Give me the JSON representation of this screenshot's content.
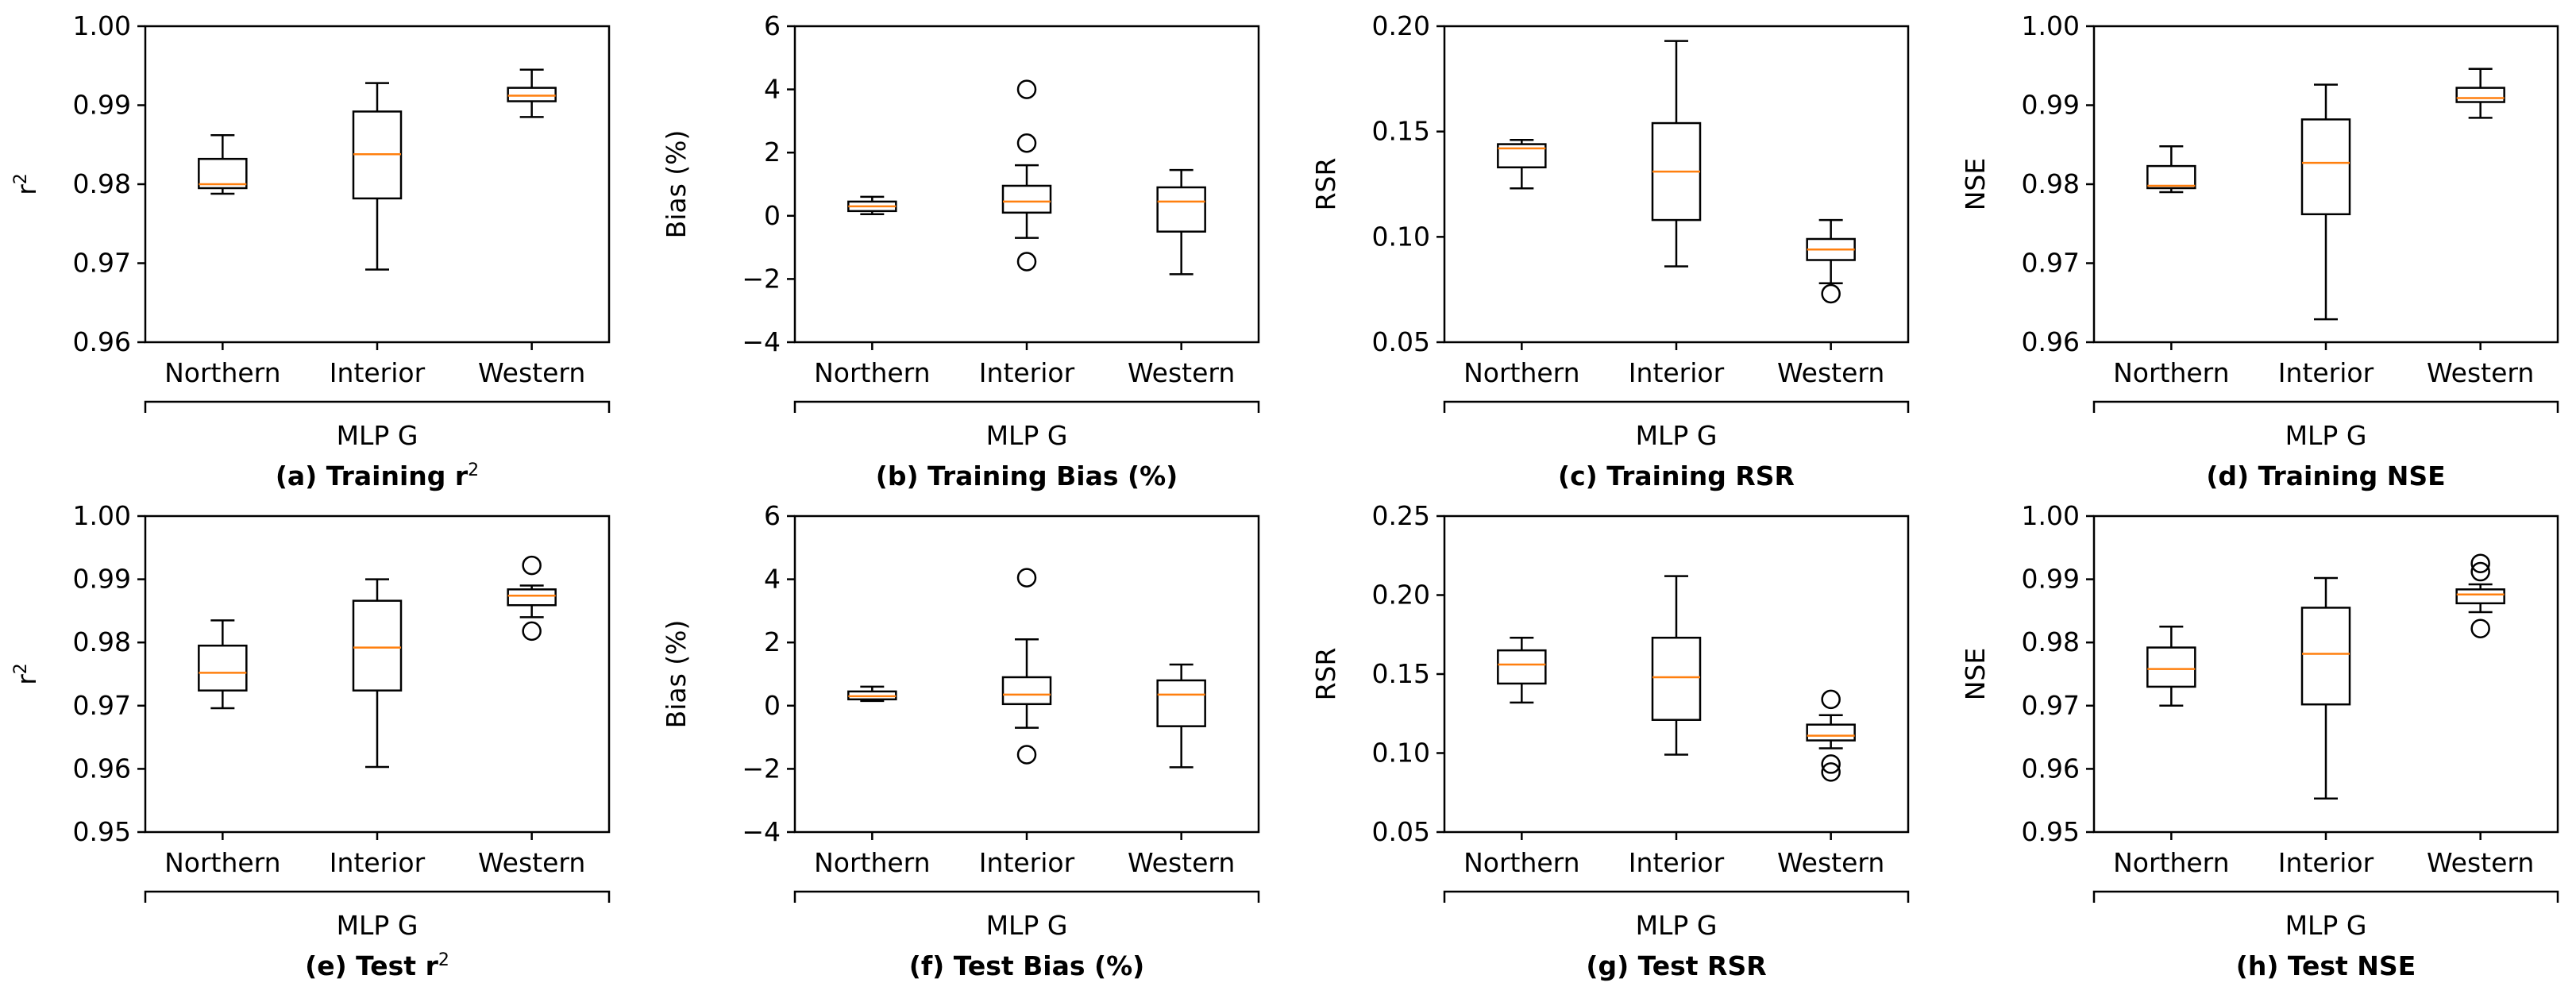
{
  "colors": {
    "median": "#ff7f0e",
    "box": "#000000",
    "background": "#ffffff"
  },
  "chart_data": [
    {
      "type": "box",
      "title": "(a) Training r",
      "title_sup": "2",
      "ylabel": "r",
      "ylabel_sup": "2",
      "group_label": "MLP G",
      "ylim": [
        0.96,
        1.0
      ],
      "yticks": [
        "0.96",
        "0.97",
        "0.98",
        "0.99",
        "1.00"
      ],
      "categories": [
        "Northern",
        "Interior",
        "Western"
      ],
      "boxes": [
        {
          "whislo": 0.9788,
          "q1": 0.9795,
          "med": 0.98,
          "q3": 0.9832,
          "whishi": 0.9862,
          "fliers": []
        },
        {
          "whislo": 0.9692,
          "q1": 0.9782,
          "med": 0.9838,
          "q3": 0.9892,
          "whishi": 0.9928,
          "fliers": []
        },
        {
          "whislo": 0.9885,
          "q1": 0.9905,
          "med": 0.9912,
          "q3": 0.9922,
          "whishi": 0.9945,
          "fliers": []
        }
      ]
    },
    {
      "type": "box",
      "title": "(b) Training Bias (%)",
      "ylabel": "Bias (%)",
      "group_label": "MLP G",
      "ylim": [
        -4,
        6
      ],
      "yticks": [
        "−4",
        "−2",
        "0",
        "2",
        "4",
        "6"
      ],
      "categories": [
        "Northern",
        "Interior",
        "Western"
      ],
      "boxes": [
        {
          "whislo": 0.05,
          "q1": 0.15,
          "med": 0.3,
          "q3": 0.45,
          "whishi": 0.6,
          "fliers": []
        },
        {
          "whislo": -0.7,
          "q1": 0.1,
          "med": 0.45,
          "q3": 0.95,
          "whishi": 1.6,
          "fliers": [
            4.0,
            2.3,
            -1.45
          ]
        },
        {
          "whislo": -1.85,
          "q1": -0.5,
          "med": 0.45,
          "q3": 0.9,
          "whishi": 1.45,
          "fliers": []
        }
      ]
    },
    {
      "type": "box",
      "title": "(c) Training RSR",
      "ylabel": "RSR",
      "group_label": "MLP G",
      "ylim": [
        0.05,
        0.2
      ],
      "yticks": [
        "0.05",
        "0.10",
        "0.15",
        "0.20"
      ],
      "categories": [
        "Northern",
        "Interior",
        "Western"
      ],
      "boxes": [
        {
          "whislo": 0.123,
          "q1": 0.133,
          "med": 0.142,
          "q3": 0.144,
          "whishi": 0.146,
          "fliers": []
        },
        {
          "whislo": 0.086,
          "q1": 0.108,
          "med": 0.131,
          "q3": 0.154,
          "whishi": 0.193,
          "fliers": []
        },
        {
          "whislo": 0.078,
          "q1": 0.089,
          "med": 0.094,
          "q3": 0.099,
          "whishi": 0.108,
          "fliers": [
            0.073
          ]
        }
      ]
    },
    {
      "type": "box",
      "title": "(d) Training NSE",
      "ylabel": "NSE",
      "group_label": "MLP G",
      "ylim": [
        0.96,
        1.0
      ],
      "yticks": [
        "0.96",
        "0.97",
        "0.98",
        "0.99",
        "1.00"
      ],
      "categories": [
        "Northern",
        "Interior",
        "Western"
      ],
      "boxes": [
        {
          "whislo": 0.979,
          "q1": 0.9795,
          "med": 0.9798,
          "q3": 0.9823,
          "whishi": 0.9848,
          "fliers": []
        },
        {
          "whislo": 0.9629,
          "q1": 0.9762,
          "med": 0.9827,
          "q3": 0.9882,
          "whishi": 0.9926,
          "fliers": []
        },
        {
          "whislo": 0.9884,
          "q1": 0.9904,
          "med": 0.9909,
          "q3": 0.9922,
          "whishi": 0.9946,
          "fliers": []
        }
      ]
    },
    {
      "type": "box",
      "title": "(e) Test r",
      "title_sup": "2",
      "ylabel": "r",
      "ylabel_sup": "2",
      "group_label": "MLP G",
      "ylim": [
        0.95,
        1.0
      ],
      "yticks": [
        "0.95",
        "0.96",
        "0.97",
        "0.98",
        "0.99",
        "1.00"
      ],
      "categories": [
        "Northern",
        "Interior",
        "Western"
      ],
      "boxes": [
        {
          "whislo": 0.9696,
          "q1": 0.9724,
          "med": 0.9752,
          "q3": 0.9795,
          "whishi": 0.9835,
          "fliers": []
        },
        {
          "whislo": 0.9603,
          "q1": 0.9724,
          "med": 0.9792,
          "q3": 0.9866,
          "whishi": 0.99,
          "fliers": []
        },
        {
          "whislo": 0.984,
          "q1": 0.9859,
          "med": 0.9874,
          "q3": 0.9884,
          "whishi": 0.989,
          "fliers": [
            0.9922,
            0.9818
          ]
        }
      ]
    },
    {
      "type": "box",
      "title": "(f) Test Bias (%)",
      "ylabel": "Bias (%)",
      "group_label": "MLP G",
      "ylim": [
        -4,
        6
      ],
      "yticks": [
        "−4",
        "−2",
        "0",
        "2",
        "4",
        "6"
      ],
      "categories": [
        "Northern",
        "Interior",
        "Western"
      ],
      "boxes": [
        {
          "whislo": 0.15,
          "q1": 0.2,
          "med": 0.3,
          "q3": 0.45,
          "whishi": 0.6,
          "fliers": []
        },
        {
          "whislo": -0.7,
          "q1": 0.05,
          "med": 0.35,
          "q3": 0.9,
          "whishi": 2.1,
          "fliers": [
            4.05,
            -1.55
          ]
        },
        {
          "whislo": -1.95,
          "q1": -0.65,
          "med": 0.35,
          "q3": 0.8,
          "whishi": 1.3,
          "fliers": []
        }
      ]
    },
    {
      "type": "box",
      "title": "(g) Test RSR",
      "ylabel": "RSR",
      "group_label": "MLP G",
      "ylim": [
        0.05,
        0.25
      ],
      "yticks": [
        "0.05",
        "0.10",
        "0.15",
        "0.20",
        "0.25"
      ],
      "categories": [
        "Northern",
        "Interior",
        "Western"
      ],
      "boxes": [
        {
          "whislo": 0.132,
          "q1": 0.144,
          "med": 0.156,
          "q3": 0.165,
          "whishi": 0.173,
          "fliers": []
        },
        {
          "whislo": 0.099,
          "q1": 0.121,
          "med": 0.148,
          "q3": 0.173,
          "whishi": 0.212,
          "fliers": []
        },
        {
          "whislo": 0.103,
          "q1": 0.108,
          "med": 0.111,
          "q3": 0.118,
          "whishi": 0.124,
          "fliers": [
            0.134,
            0.093,
            0.088
          ]
        }
      ]
    },
    {
      "type": "box",
      "title": "(h) Test NSE",
      "ylabel": "NSE",
      "group_label": "MLP G",
      "ylim": [
        0.95,
        1.0
      ],
      "yticks": [
        "0.95",
        "0.96",
        "0.97",
        "0.98",
        "0.99",
        "1.00"
      ],
      "categories": [
        "Northern",
        "Interior",
        "Western"
      ],
      "boxes": [
        {
          "whislo": 0.97,
          "q1": 0.973,
          "med": 0.9758,
          "q3": 0.9792,
          "whishi": 0.9825,
          "fliers": []
        },
        {
          "whislo": 0.9553,
          "q1": 0.9702,
          "med": 0.9782,
          "q3": 0.9855,
          "whishi": 0.9902,
          "fliers": []
        },
        {
          "whislo": 0.9848,
          "q1": 0.9862,
          "med": 0.9876,
          "q3": 0.9884,
          "whishi": 0.9892,
          "fliers": [
            0.9925,
            0.9912,
            0.9822
          ]
        }
      ]
    }
  ]
}
